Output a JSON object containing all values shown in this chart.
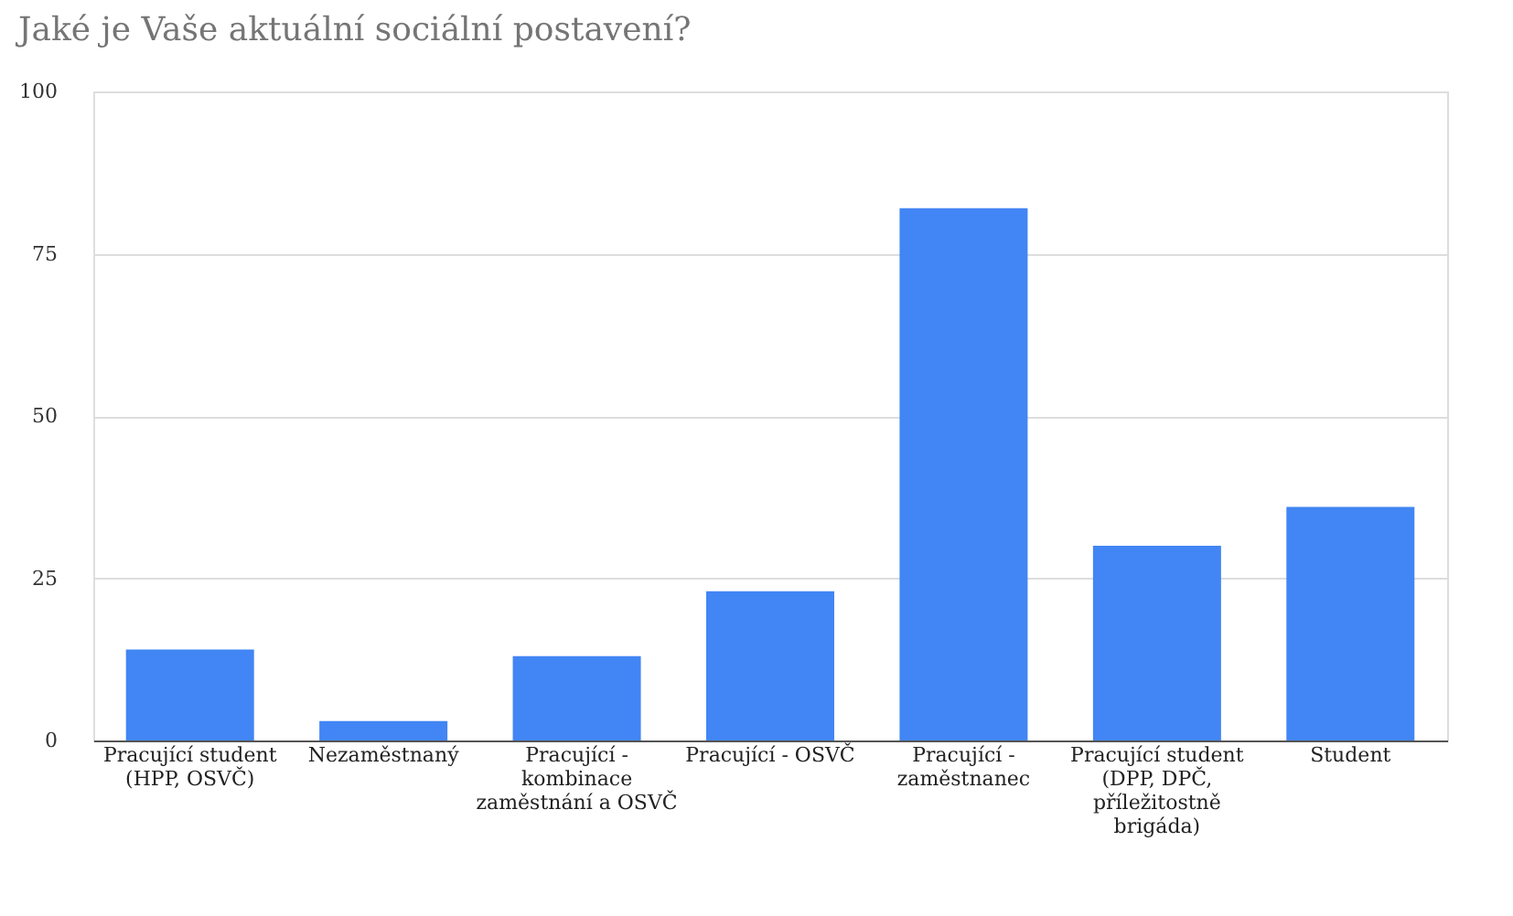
{
  "chart_data": {
    "type": "bar",
    "title": "Jaké je Vaše aktuální sociální postavení?",
    "categories": [
      "Pracující student (HPP, OSVČ)",
      "Nezaměstnaný",
      "Pracující - kombinace zaměstnání a OSVČ",
      "Pracující - OSVČ",
      "Pracující - zaměstnanec",
      "Pracující student (DPP, DPČ, příležitostně brigáda)",
      "Student"
    ],
    "values": [
      14,
      3,
      13,
      23,
      82,
      30,
      36
    ],
    "color": "#4285f4",
    "ylim": [
      0,
      100
    ],
    "yticks": [
      0,
      25,
      50,
      75,
      100
    ],
    "grid": "y"
  }
}
